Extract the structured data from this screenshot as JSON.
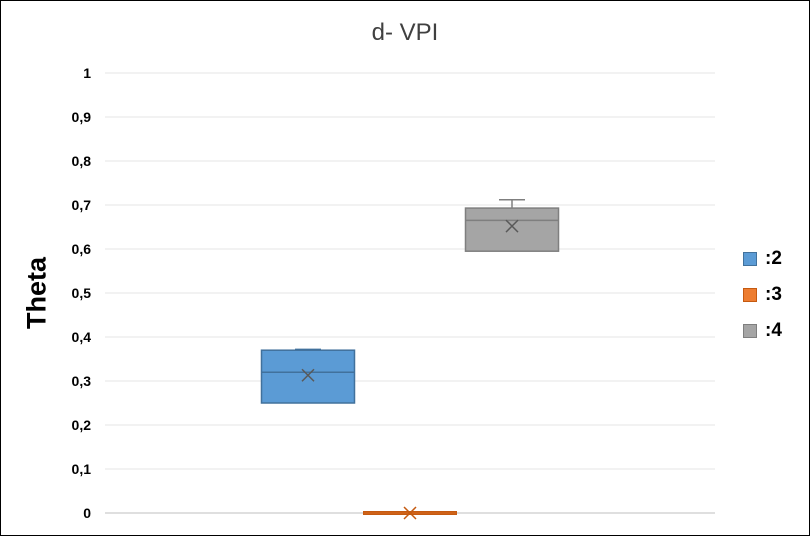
{
  "chart_data": {
    "type": "box",
    "title": "d- VPI",
    "ylabel": "Theta",
    "xlabel": "",
    "ylim": [
      0,
      1
    ],
    "yticks": [
      0,
      0.1,
      0.2,
      0.3,
      0.4,
      0.5,
      0.6,
      0.7,
      0.8,
      0.9,
      1
    ],
    "ytick_labels": [
      "0",
      "0,1",
      "0,2",
      "0,3",
      "0,4",
      "0,5",
      "0,6",
      "0,7",
      "0,8",
      "0,9",
      "1"
    ],
    "grid": true,
    "legend_position": "right",
    "series": [
      {
        "name": ":2",
        "color": "#5B9BD5",
        "stroke": "#41719C",
        "min": 0.25,
        "q1": 0.25,
        "median": 0.32,
        "q3": 0.37,
        "max": 0.372,
        "mean": 0.313
      },
      {
        "name": ":3",
        "color": "#ED7D31",
        "stroke": "#C55A11",
        "min": 0,
        "q1": 0,
        "median": 0,
        "q3": 0,
        "max": 0,
        "mean": 0
      },
      {
        "name": ":4",
        "color": "#A5A5A5",
        "stroke": "#7F7F7F",
        "min": 0.595,
        "q1": 0.595,
        "median": 0.665,
        "q3": 0.693,
        "max": 0.712,
        "mean": 0.652
      }
    ]
  }
}
